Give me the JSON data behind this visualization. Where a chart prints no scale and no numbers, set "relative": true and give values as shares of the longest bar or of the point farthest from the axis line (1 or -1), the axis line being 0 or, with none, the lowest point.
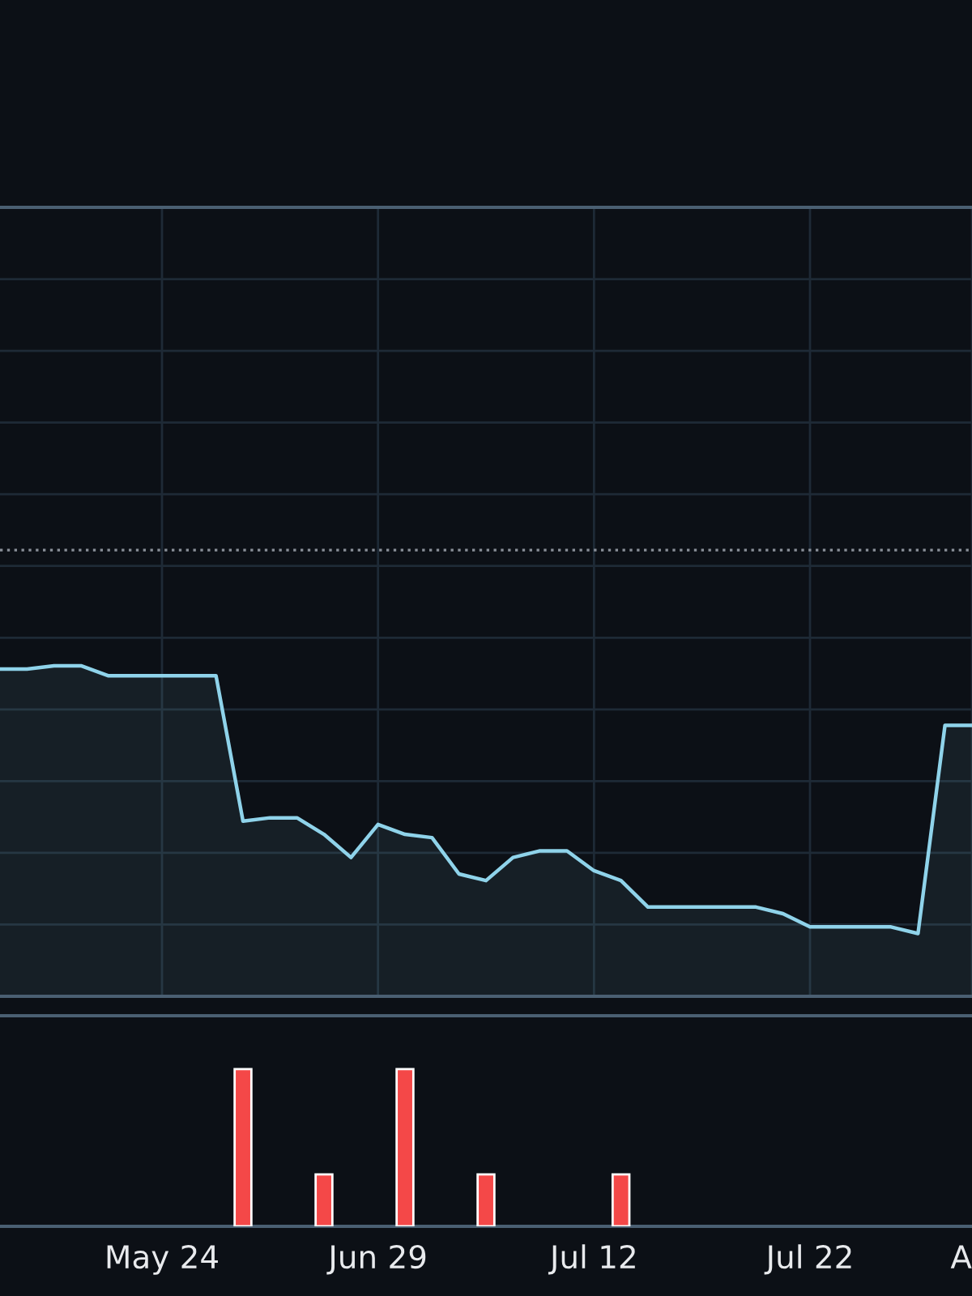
{
  "chart_data": [
    {
      "type": "area",
      "relative": true,
      "categories": [
        null,
        null,
        null,
        null,
        null,
        null,
        null,
        null,
        null,
        null,
        null,
        null,
        null,
        null,
        null,
        null,
        null,
        null,
        null,
        null,
        null,
        null,
        null,
        null,
        null,
        null,
        null,
        null,
        null,
        null,
        null,
        null,
        null,
        null,
        null,
        null,
        null
      ],
      "series": [
        {
          "color": "#8fd3ea",
          "values": [
            0.99,
            0.99,
            1,
            1,
            0.97,
            0.97,
            0.97,
            0.97,
            0.97,
            0.53,
            0.54,
            0.54,
            0.49,
            0.42,
            0.52,
            0.49,
            0.48,
            0.37,
            0.35,
            0.42,
            0.44,
            0.44,
            0.38,
            0.35,
            0.27,
            0.27,
            0.27,
            0.27,
            0.27,
            0.25,
            0.21,
            0.21,
            0.21,
            0.21,
            0.19,
            0.82,
            0.82
          ]
        }
      ],
      "ref_lines": [
        {
          "axis": "y",
          "value": 1.35,
          "color": "#8a9099",
          "line_style": "dotted"
        }
      ],
      "grid": true,
      "tick_labels": false,
      "marker": "none",
      "line_style": "solid"
    },
    {
      "type": "bar",
      "relative": true,
      "categories": [
        null,
        null,
        null,
        null,
        null,
        null,
        "May 24",
        null,
        null,
        null,
        null,
        null,
        null,
        null,
        "Jun 29",
        null,
        null,
        null,
        null,
        null,
        null,
        null,
        "Jul 12",
        null,
        null,
        null,
        null,
        null,
        null,
        null,
        "Jul 22",
        null,
        null,
        null,
        null,
        null,
        "A"
      ],
      "series": [
        {
          "color": "#f44848",
          "values": [
            null,
            null,
            null,
            null,
            null,
            null,
            null,
            null,
            null,
            1,
            null,
            null,
            0.33,
            null,
            null,
            1,
            null,
            null,
            0.33,
            null,
            null,
            null,
            null,
            0.33,
            null,
            null,
            null,
            null,
            null,
            null,
            null,
            null,
            null,
            null,
            null,
            null,
            null
          ]
        }
      ],
      "tick_labels": "x"
    }
  ]
}
